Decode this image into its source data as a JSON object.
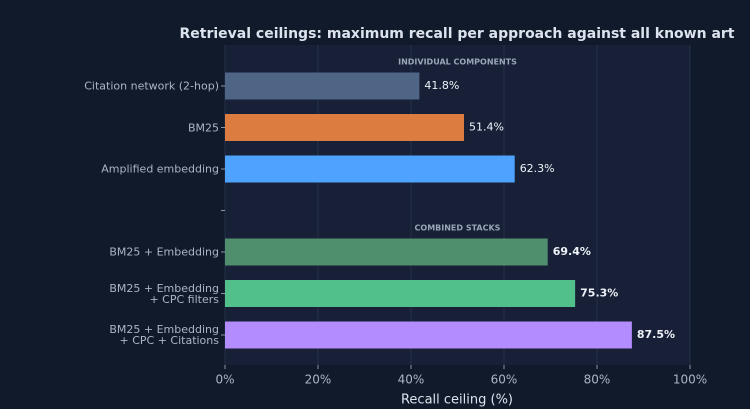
{
  "chart_data": {
    "type": "hbar",
    "title": "Retrieval ceilings: maximum recall per approach against all known art",
    "categories": [
      "Citation network (2-hop)",
      "BM25",
      "Amplified embedding",
      null,
      "BM25 + Embedding",
      "BM25 + Embedding\n+ CPC filters",
      "BM25 + Embedding\n+ CPC + Citations"
    ],
    "values": [
      41.8,
      51.4,
      62.3,
      null,
      69.4,
      75.3,
      87.5
    ],
    "value_labels": [
      "41.8%",
      "51.4%",
      "62.3%",
      null,
      "69.4%",
      "75.3%",
      "87.5%"
    ],
    "colors": [
      "#4f6585",
      "#dd7c40",
      "#4da3ff",
      null,
      "#4f8f6e",
      "#52c08a",
      "#b38cff"
    ],
    "annotations": [
      "INDIVIDUAL COMPONENTS",
      "COMBINED STACKS"
    ],
    "xlabel": "Recall ceiling (%)",
    "xlim": [
      0,
      100
    ],
    "xticks": [
      {
        "value": 0,
        "label": "0%"
      },
      {
        "value": 20,
        "label": "20%"
      },
      {
        "value": 40,
        "label": "40%"
      },
      {
        "value": 60,
        "label": "60%"
      },
      {
        "value": 80,
        "label": "80%"
      },
      {
        "value": 100,
        "label": "100%"
      }
    ],
    "grid": true
  }
}
